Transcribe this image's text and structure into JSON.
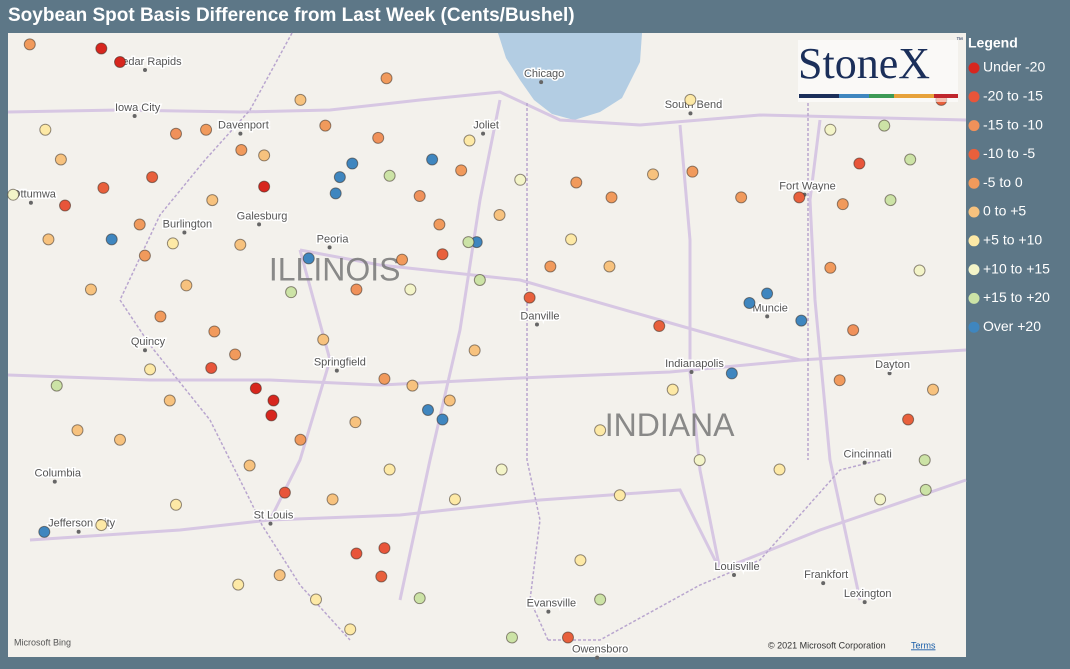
{
  "title": "Soybean Spot Basis Difference from Last Week (Cents/Bushel)",
  "logo": {
    "text": "StoneX",
    "mark": "™"
  },
  "legend": {
    "title": "Legend",
    "items": [
      {
        "name": "Under -20",
        "color": "#d7261e"
      },
      {
        "name": "-20 to -15",
        "color": "#e8553a"
      },
      {
        "name": "-15 to -10",
        "color": "#f0915a"
      },
      {
        "name": "-10 to -5",
        "color": "#e8603c"
      },
      {
        "name": "-5 to 0",
        "color": "#f19a5c"
      },
      {
        "name": "0 to +5",
        "color": "#f7c27e"
      },
      {
        "name": "+5 to +10",
        "color": "#fde9a6"
      },
      {
        "name": "+10 to +15",
        "color": "#f3f4c8"
      },
      {
        "name": "+15 to +20",
        "color": "#cce3a6"
      },
      {
        "name": "Over +20",
        "color": "#3f86bf"
      }
    ]
  },
  "labels": [
    {
      "text": "Cedar Rapids",
      "lon": -91.38,
      "lat": 41.98
    },
    {
      "text": "Iowa City",
      "lon": -91.48,
      "lat": 41.64
    },
    {
      "text": "Davenport",
      "lon": -90.46,
      "lat": 41.51
    },
    {
      "text": "Ottumwa",
      "lon": -92.48,
      "lat": 41.0
    },
    {
      "text": "Burlington",
      "lon": -91.0,
      "lat": 40.78
    },
    {
      "text": "Galesburg",
      "lon": -90.28,
      "lat": 40.84
    },
    {
      "text": "Peoria",
      "lon": -89.6,
      "lat": 40.67
    },
    {
      "text": "Quincy",
      "lon": -91.38,
      "lat": 39.91
    },
    {
      "text": "Springfield",
      "lon": -89.53,
      "lat": 39.76
    },
    {
      "text": "Columbia",
      "lon": -92.25,
      "lat": 38.94
    },
    {
      "text": "Jefferson City",
      "lon": -92.02,
      "lat": 38.57
    },
    {
      "text": "St Louis",
      "lon": -90.17,
      "lat": 38.63
    },
    {
      "text": "Chicago",
      "lon": -87.56,
      "lat": 41.89
    },
    {
      "text": "South Bend",
      "lon": -86.12,
      "lat": 41.66
    },
    {
      "text": "Joliet",
      "lon": -88.12,
      "lat": 41.51
    },
    {
      "text": "Danville",
      "lon": -87.6,
      "lat": 40.1
    },
    {
      "text": "Fort Wayne",
      "lon": -85.02,
      "lat": 41.06
    },
    {
      "text": "Indianapolis",
      "lon": -86.11,
      "lat": 39.75
    },
    {
      "text": "Muncie",
      "lon": -85.38,
      "lat": 40.16
    },
    {
      "text": "Dayton",
      "lon": -84.2,
      "lat": 39.74
    },
    {
      "text": "Cincinnati",
      "lon": -84.44,
      "lat": 39.08
    },
    {
      "text": "Louisville",
      "lon": -85.7,
      "lat": 38.25
    },
    {
      "text": "Frankfort",
      "lon": -84.84,
      "lat": 38.19
    },
    {
      "text": "Lexington",
      "lon": -84.44,
      "lat": 38.05
    },
    {
      "text": "Evansville",
      "lon": -87.49,
      "lat": 37.98
    },
    {
      "text": "Owensboro",
      "lon": -87.02,
      "lat": 37.64
    }
  ],
  "states": [
    {
      "text": "ILLINOIS",
      "lon": -89.58,
      "lat": 40.43
    },
    {
      "text": "INDIANA",
      "lon": -86.35,
      "lat": 39.28
    }
  ],
  "points": [
    {
      "lon": -89.41,
      "lat": 41.23,
      "class": 9
    },
    {
      "lon": -89.53,
      "lat": 41.13,
      "class": 9
    },
    {
      "lon": -89.57,
      "lat": 41.01,
      "class": 9
    },
    {
      "lon": -88.64,
      "lat": 41.26,
      "class": 9
    },
    {
      "lon": -91.73,
      "lat": 40.67,
      "class": 9
    },
    {
      "lon": -88.21,
      "lat": 40.65,
      "class": 9
    },
    {
      "lon": -89.83,
      "lat": 40.53,
      "class": 9
    },
    {
      "lon": -85.58,
      "lat": 40.2,
      "class": 9
    },
    {
      "lon": -85.41,
      "lat": 40.27,
      "class": 9
    },
    {
      "lon": -85.08,
      "lat": 40.07,
      "class": 9
    },
    {
      "lon": -85.75,
      "lat": 39.68,
      "class": 9
    },
    {
      "lon": -88.68,
      "lat": 39.41,
      "class": 9
    },
    {
      "lon": -88.54,
      "lat": 39.34,
      "class": 9
    },
    {
      "lon": -92.38,
      "lat": 38.51,
      "class": 9
    },
    {
      "lon": -91.83,
      "lat": 42.08,
      "class": 0
    },
    {
      "lon": -91.65,
      "lat": 41.98,
      "class": 0
    },
    {
      "lon": -90.34,
      "lat": 39.57,
      "class": 0
    },
    {
      "lon": -90.17,
      "lat": 39.48,
      "class": 0
    },
    {
      "lon": -90.19,
      "lat": 39.37,
      "class": 0
    },
    {
      "lon": -90.26,
      "lat": 41.06,
      "class": 0
    },
    {
      "lon": -92.18,
      "lat": 40.92,
      "class": 1
    },
    {
      "lon": -90.77,
      "lat": 39.72,
      "class": 1
    },
    {
      "lon": -90.06,
      "lat": 38.8,
      "class": 1
    },
    {
      "lon": -89.37,
      "lat": 38.35,
      "class": 1
    },
    {
      "lon": -89.1,
      "lat": 38.39,
      "class": 1
    },
    {
      "lon": -84.52,
      "lat": 41.23,
      "class": 1
    },
    {
      "lon": -91.34,
      "lat": 41.13,
      "class": 3
    },
    {
      "lon": -91.81,
      "lat": 41.05,
      "class": 3
    },
    {
      "lon": -88.54,
      "lat": 40.56,
      "class": 3
    },
    {
      "lon": -87.7,
      "lat": 40.24,
      "class": 3
    },
    {
      "lon": -86.45,
      "lat": 40.03,
      "class": 3
    },
    {
      "lon": -84.05,
      "lat": 39.34,
      "class": 3
    },
    {
      "lon": -85.1,
      "lat": 40.98,
      "class": 3
    },
    {
      "lon": -83.73,
      "lat": 41.7,
      "class": 3
    },
    {
      "lon": -89.13,
      "lat": 38.18,
      "class": 3
    },
    {
      "lon": -87.33,
      "lat": 37.73,
      "class": 3
    },
    {
      "lon": -92.52,
      "lat": 42.11,
      "class": 4
    },
    {
      "lon": -91.11,
      "lat": 41.45,
      "class": 2
    },
    {
      "lon": -90.48,
      "lat": 41.33,
      "class": 4
    },
    {
      "lon": -89.91,
      "lat": 41.7,
      "class": 5
    },
    {
      "lon": -89.08,
      "lat": 41.86,
      "class": 4
    },
    {
      "lon": -89.16,
      "lat": 41.42,
      "class": 2
    },
    {
      "lon": -88.76,
      "lat": 40.99,
      "class": 2
    },
    {
      "lon": -88.57,
      "lat": 40.78,
      "class": 4
    },
    {
      "lon": -88.93,
      "lat": 40.52,
      "class": 4
    },
    {
      "lon": -89.37,
      "lat": 40.3,
      "class": 2
    },
    {
      "lon": -89.69,
      "lat": 39.93,
      "class": 5
    },
    {
      "lon": -90.74,
      "lat": 39.99,
      "class": 4
    },
    {
      "lon": -91.26,
      "lat": 40.1,
      "class": 4
    },
    {
      "lon": -91.93,
      "lat": 40.3,
      "class": 5
    },
    {
      "lon": -92.34,
      "lat": 40.67,
      "class": 5
    },
    {
      "lon": -91.41,
      "lat": 40.55,
      "class": 4
    },
    {
      "lon": -90.49,
      "lat": 40.63,
      "class": 5
    },
    {
      "lon": -89.91,
      "lat": 39.19,
      "class": 4
    },
    {
      "lon": -89.6,
      "lat": 38.75,
      "class": 5
    },
    {
      "lon": -90.11,
      "lat": 38.19,
      "class": 5
    },
    {
      "lon": -87.5,
      "lat": 40.47,
      "class": 4
    },
    {
      "lon": -86.93,
      "lat": 40.47,
      "class": 5
    },
    {
      "lon": -86.51,
      "lat": 41.15,
      "class": 5
    },
    {
      "lon": -86.13,
      "lat": 41.17,
      "class": 4
    },
    {
      "lon": -85.66,
      "lat": 40.98,
      "class": 4
    },
    {
      "lon": -87.25,
      "lat": 41.09,
      "class": 4
    },
    {
      "lon": -86.91,
      "lat": 40.98,
      "class": 4
    },
    {
      "lon": -84.68,
      "lat": 40.93,
      "class": 4
    },
    {
      "lon": -84.8,
      "lat": 40.46,
      "class": 4
    },
    {
      "lon": -84.58,
      "lat": 40.0,
      "class": 2
    },
    {
      "lon": -84.71,
      "lat": 39.63,
      "class": 4
    },
    {
      "lon": -83.81,
      "lat": 39.56,
      "class": 5
    },
    {
      "lon": -89.1,
      "lat": 39.64,
      "class": 4
    },
    {
      "lon": -88.83,
      "lat": 39.59,
      "class": 5
    },
    {
      "lon": -89.38,
      "lat": 39.32,
      "class": 5
    },
    {
      "lon": -90.4,
      "lat": 39.0,
      "class": 5
    },
    {
      "lon": -91.17,
      "lat": 39.48,
      "class": 5
    },
    {
      "lon": -91.65,
      "lat": 39.19,
      "class": 5
    },
    {
      "lon": -92.06,
      "lat": 39.26,
      "class": 5
    },
    {
      "lon": -90.82,
      "lat": 41.48,
      "class": 4
    },
    {
      "lon": -91.46,
      "lat": 40.78,
      "class": 4
    },
    {
      "lon": -88.47,
      "lat": 39.48,
      "class": 5
    },
    {
      "lon": -88.23,
      "lat": 39.85,
      "class": 5
    },
    {
      "lon": -87.99,
      "lat": 40.85,
      "class": 5
    },
    {
      "lon": -88.36,
      "lat": 41.18,
      "class": 4
    },
    {
      "lon": -89.67,
      "lat": 41.51,
      "class": 4
    },
    {
      "lon": -90.26,
      "lat": 41.29,
      "class": 5
    },
    {
      "lon": -90.76,
      "lat": 40.96,
      "class": 5
    },
    {
      "lon": -91.01,
      "lat": 40.33,
      "class": 5
    },
    {
      "lon": -90.54,
      "lat": 39.82,
      "class": 4
    },
    {
      "lon": -92.22,
      "lat": 41.26,
      "class": 5
    },
    {
      "lon": -92.68,
      "lat": 41.0,
      "class": 7
    },
    {
      "lon": -91.14,
      "lat": 40.64,
      "class": 6
    },
    {
      "lon": -91.36,
      "lat": 39.71,
      "class": 6
    },
    {
      "lon": -91.83,
      "lat": 38.56,
      "class": 6
    },
    {
      "lon": -91.11,
      "lat": 38.71,
      "class": 6
    },
    {
      "lon": -90.51,
      "lat": 38.12,
      "class": 6
    },
    {
      "lon": -89.76,
      "lat": 38.01,
      "class": 6
    },
    {
      "lon": -88.42,
      "lat": 38.75,
      "class": 6
    },
    {
      "lon": -87.97,
      "lat": 38.97,
      "class": 7
    },
    {
      "lon": -87.21,
      "lat": 38.3,
      "class": 6
    },
    {
      "lon": -86.83,
      "lat": 38.78,
      "class": 6
    },
    {
      "lon": -86.06,
      "lat": 39.04,
      "class": 7
    },
    {
      "lon": -85.29,
      "lat": 38.97,
      "class": 6
    },
    {
      "lon": -84.32,
      "lat": 38.75,
      "class": 7
    },
    {
      "lon": -83.94,
      "lat": 40.44,
      "class": 7
    },
    {
      "lon": -87.3,
      "lat": 40.67,
      "class": 6
    },
    {
      "lon": -87.79,
      "lat": 41.11,
      "class": 7
    },
    {
      "lon": -86.32,
      "lat": 39.56,
      "class": 6
    },
    {
      "lon": -87.02,
      "lat": 39.26,
      "class": 6
    },
    {
      "lon": -88.85,
      "lat": 40.3,
      "class": 7
    },
    {
      "lon": -88.28,
      "lat": 41.4,
      "class": 6
    },
    {
      "lon": -89.05,
      "lat": 38.97,
      "class": 6
    },
    {
      "lon": -89.43,
      "lat": 37.79,
      "class": 6
    },
    {
      "lon": -86.15,
      "lat": 41.7,
      "class": 6
    },
    {
      "lon": -92.37,
      "lat": 41.48,
      "class": 6
    },
    {
      "lon": -84.8,
      "lat": 41.48,
      "class": 7
    },
    {
      "lon": -92.26,
      "lat": 39.59,
      "class": 8
    },
    {
      "lon": -90.0,
      "lat": 40.28,
      "class": 8
    },
    {
      "lon": -89.05,
      "lat": 41.14,
      "class": 8
    },
    {
      "lon": -88.29,
      "lat": 40.65,
      "class": 8
    },
    {
      "lon": -88.76,
      "lat": 38.02,
      "class": 8
    },
    {
      "lon": -87.87,
      "lat": 37.73,
      "class": 8
    },
    {
      "lon": -84.28,
      "lat": 41.51,
      "class": 8
    },
    {
      "lon": -84.03,
      "lat": 41.26,
      "class": 8
    },
    {
      "lon": -84.22,
      "lat": 40.96,
      "class": 8
    },
    {
      "lon": -83.89,
      "lat": 39.04,
      "class": 8
    },
    {
      "lon": -83.88,
      "lat": 38.82,
      "class": 8
    },
    {
      "lon": -87.02,
      "lat": 38.01,
      "class": 8
    },
    {
      "lon": -88.18,
      "lat": 40.37,
      "class": 8
    }
  ],
  "attribution": {
    "bing": "Microsoft Bing",
    "copyright": "© 2021 Microsoft Corporation",
    "terms": "Terms"
  }
}
